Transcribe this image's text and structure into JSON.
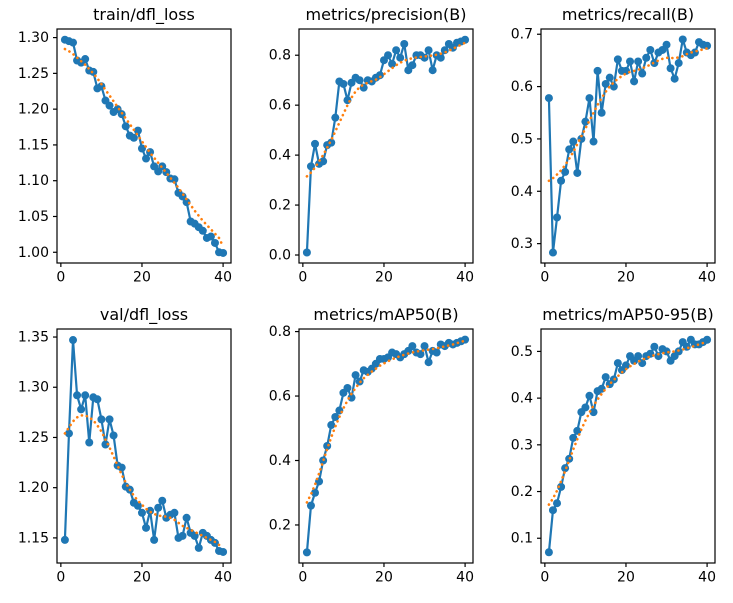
{
  "figure": {
    "background": "#ffffff",
    "rows": 2,
    "cols": 3,
    "colors": {
      "line": "#1f77b4",
      "smooth_dotted": "#ff7f0e",
      "axis": "#000000"
    }
  },
  "chart_data": [
    {
      "type": "line",
      "title": "train/dfl_loss",
      "xlabel": "",
      "ylabel": "",
      "grid": false,
      "legend": "none",
      "x": [
        1,
        2,
        3,
        4,
        5,
        6,
        7,
        8,
        9,
        10,
        11,
        12,
        13,
        14,
        15,
        16,
        17,
        18,
        19,
        20,
        21,
        22,
        23,
        24,
        25,
        26,
        27,
        28,
        29,
        30,
        31,
        32,
        33,
        34,
        35,
        36,
        37,
        38,
        39,
        40
      ],
      "xlim": [
        -0.95,
        41.95
      ],
      "xticks": [
        0,
        20,
        40
      ],
      "xtick_labels": [
        "0",
        "20",
        "40"
      ],
      "ylim": [
        0.985,
        1.312
      ],
      "yticks": [
        1.0,
        1.05,
        1.1,
        1.15,
        1.2,
        1.25,
        1.3
      ],
      "ytick_labels": [
        "1.00",
        "1.05",
        "1.10",
        "1.15",
        "1.20",
        "1.25",
        "1.30"
      ],
      "series": [
        {
          "name": "solid",
          "color": "#1f77b4",
          "style": "solid-markers",
          "values": [
            1.297,
            1.295,
            1.293,
            1.268,
            1.265,
            1.27,
            1.254,
            1.252,
            1.229,
            1.232,
            1.212,
            1.205,
            1.196,
            1.2,
            1.193,
            1.176,
            1.163,
            1.16,
            1.17,
            1.145,
            1.131,
            1.14,
            1.12,
            1.113,
            1.12,
            1.112,
            1.103,
            1.102,
            1.083,
            1.078,
            1.07,
            1.043,
            1.04,
            1.035,
            1.03,
            1.02,
            1.022,
            1.013,
            1.0,
            0.999
          ]
        },
        {
          "name": "dotted",
          "color": "#ff7f0e",
          "style": "dotted",
          "values": [
            1.284,
            1.281,
            1.277,
            1.272,
            1.267,
            1.262,
            1.256,
            1.25,
            1.243,
            1.235,
            1.227,
            1.219,
            1.211,
            1.203,
            1.195,
            1.187,
            1.179,
            1.171,
            1.163,
            1.155,
            1.147,
            1.139,
            1.132,
            1.125,
            1.118,
            1.111,
            1.104,
            1.097,
            1.09,
            1.082,
            1.074,
            1.066,
            1.058,
            1.051,
            1.044,
            1.038,
            1.032,
            1.026,
            1.02,
            1.008
          ]
        }
      ]
    },
    {
      "type": "line",
      "title": "metrics/precision(B)",
      "xlabel": "",
      "ylabel": "",
      "grid": false,
      "legend": "none",
      "x": [
        1,
        2,
        3,
        4,
        5,
        6,
        7,
        8,
        9,
        10,
        11,
        12,
        13,
        14,
        15,
        16,
        17,
        18,
        19,
        20,
        21,
        22,
        23,
        24,
        25,
        26,
        27,
        28,
        29,
        30,
        31,
        32,
        33,
        34,
        35,
        36,
        37,
        38,
        39,
        40
      ],
      "xlim": [
        -0.95,
        41.95
      ],
      "xticks": [
        0,
        20,
        40
      ],
      "xtick_labels": [
        "0",
        "20",
        "40"
      ],
      "ylim": [
        -0.032,
        0.905
      ],
      "yticks": [
        0.0,
        0.2,
        0.4,
        0.6,
        0.8
      ],
      "ytick_labels": [
        "0.0",
        "0.2",
        "0.4",
        "0.6",
        "0.8"
      ],
      "series": [
        {
          "name": "solid",
          "color": "#1f77b4",
          "style": "solid-markers",
          "values": [
            0.01,
            0.355,
            0.445,
            0.365,
            0.375,
            0.44,
            0.45,
            0.55,
            0.695,
            0.685,
            0.62,
            0.69,
            0.71,
            0.7,
            0.67,
            0.7,
            0.695,
            0.71,
            0.72,
            0.78,
            0.8,
            0.765,
            0.82,
            0.79,
            0.845,
            0.74,
            0.76,
            0.8,
            0.8,
            0.79,
            0.82,
            0.74,
            0.8,
            0.79,
            0.82,
            0.845,
            0.83,
            0.85,
            0.855,
            0.862
          ]
        },
        {
          "name": "dotted",
          "color": "#ff7f0e",
          "style": "dotted",
          "values": [
            0.315,
            0.33,
            0.35,
            0.375,
            0.4,
            0.43,
            0.46,
            0.495,
            0.53,
            0.565,
            0.6,
            0.63,
            0.655,
            0.672,
            0.683,
            0.69,
            0.696,
            0.702,
            0.712,
            0.724,
            0.736,
            0.748,
            0.76,
            0.77,
            0.778,
            0.784,
            0.788,
            0.791,
            0.793,
            0.795,
            0.797,
            0.799,
            0.802,
            0.806,
            0.811,
            0.818,
            0.826,
            0.834,
            0.842,
            0.85
          ]
        }
      ]
    },
    {
      "type": "line",
      "title": "metrics/recall(B)",
      "xlabel": "",
      "ylabel": "",
      "grid": false,
      "legend": "none",
      "x": [
        1,
        2,
        3,
        4,
        5,
        6,
        7,
        8,
        9,
        10,
        11,
        12,
        13,
        14,
        15,
        16,
        17,
        18,
        19,
        20,
        21,
        22,
        23,
        24,
        25,
        26,
        27,
        28,
        29,
        30,
        31,
        32,
        33,
        34,
        35,
        36,
        37,
        38,
        39,
        40
      ],
      "xlim": [
        -0.95,
        41.95
      ],
      "xticks": [
        0,
        20,
        40
      ],
      "xtick_labels": [
        "0",
        "20",
        "40"
      ],
      "ylim": [
        0.263,
        0.71
      ],
      "yticks": [
        0.3,
        0.4,
        0.5,
        0.6,
        0.7
      ],
      "ytick_labels": [
        "0.3",
        "0.4",
        "0.5",
        "0.6",
        "0.7"
      ],
      "series": [
        {
          "name": "solid",
          "color": "#1f77b4",
          "style": "solid-markers",
          "values": [
            0.578,
            0.283,
            0.35,
            0.42,
            0.437,
            0.48,
            0.495,
            0.435,
            0.5,
            0.533,
            0.578,
            0.495,
            0.63,
            0.55,
            0.605,
            0.617,
            0.6,
            0.652,
            0.63,
            0.63,
            0.648,
            0.61,
            0.648,
            0.625,
            0.655,
            0.67,
            0.645,
            0.665,
            0.67,
            0.68,
            0.635,
            0.615,
            0.645,
            0.69,
            0.665,
            0.66,
            0.665,
            0.685,
            0.68,
            0.678
          ]
        },
        {
          "name": "dotted",
          "color": "#ff7f0e",
          "style": "dotted",
          "values": [
            0.42,
            0.425,
            0.432,
            0.44,
            0.45,
            0.462,
            0.475,
            0.49,
            0.505,
            0.52,
            0.535,
            0.55,
            0.565,
            0.578,
            0.59,
            0.6,
            0.608,
            0.615,
            0.62,
            0.625,
            0.628,
            0.63,
            0.632,
            0.635,
            0.638,
            0.642,
            0.646,
            0.65,
            0.653,
            0.655,
            0.655,
            0.654,
            0.656,
            0.658,
            0.662,
            0.665,
            0.667,
            0.669,
            0.671,
            0.673
          ]
        }
      ]
    },
    {
      "type": "line",
      "title": "val/dfl_loss",
      "xlabel": "",
      "ylabel": "",
      "grid": false,
      "legend": "none",
      "x": [
        1,
        2,
        3,
        4,
        5,
        6,
        7,
        8,
        9,
        10,
        11,
        12,
        13,
        14,
        15,
        16,
        17,
        18,
        19,
        20,
        21,
        22,
        23,
        24,
        25,
        26,
        27,
        28,
        29,
        30,
        31,
        32,
        33,
        34,
        35,
        36,
        37,
        38,
        39,
        40
      ],
      "xlim": [
        -0.95,
        41.95
      ],
      "xticks": [
        0,
        20,
        40
      ],
      "xtick_labels": [
        "0",
        "20",
        "40"
      ],
      "ylim": [
        1.125,
        1.358
      ],
      "yticks": [
        1.15,
        1.2,
        1.25,
        1.3,
        1.35
      ],
      "ytick_labels": [
        "1.15",
        "1.20",
        "1.25",
        "1.30",
        "1.35"
      ],
      "series": [
        {
          "name": "solid",
          "color": "#1f77b4",
          "style": "solid-markers",
          "values": [
            1.148,
            1.254,
            1.347,
            1.292,
            1.278,
            1.292,
            1.245,
            1.29,
            1.288,
            1.268,
            1.243,
            1.268,
            1.252,
            1.222,
            1.22,
            1.201,
            1.198,
            1.185,
            1.182,
            1.175,
            1.16,
            1.177,
            1.148,
            1.18,
            1.187,
            1.17,
            1.173,
            1.175,
            1.15,
            1.152,
            1.17,
            1.155,
            1.152,
            1.14,
            1.155,
            1.152,
            1.148,
            1.145,
            1.137,
            1.136
          ]
        },
        {
          "name": "dotted",
          "color": "#ff7f0e",
          "style": "dotted",
          "values": [
            1.254,
            1.26,
            1.266,
            1.27,
            1.272,
            1.272,
            1.27,
            1.267,
            1.262,
            1.256,
            1.248,
            1.24,
            1.231,
            1.222,
            1.213,
            1.205,
            1.198,
            1.192,
            1.187,
            1.183,
            1.179,
            1.176,
            1.174,
            1.172,
            1.172,
            1.171,
            1.17,
            1.168,
            1.165,
            1.162,
            1.16,
            1.158,
            1.156,
            1.154,
            1.152,
            1.15,
            1.148,
            1.146,
            1.143,
            1.141
          ]
        }
      ]
    },
    {
      "type": "line",
      "title": "metrics/mAP50(B)",
      "xlabel": "",
      "ylabel": "",
      "grid": false,
      "legend": "none",
      "x": [
        1,
        2,
        3,
        4,
        5,
        6,
        7,
        8,
        9,
        10,
        11,
        12,
        13,
        14,
        15,
        16,
        17,
        18,
        19,
        20,
        21,
        22,
        23,
        24,
        25,
        26,
        27,
        28,
        29,
        30,
        31,
        32,
        33,
        34,
        35,
        36,
        37,
        38,
        39,
        40
      ],
      "xlim": [
        -0.95,
        41.95
      ],
      "xticks": [
        0,
        20,
        40
      ],
      "xtick_labels": [
        "0",
        "20",
        "40"
      ],
      "ylim": [
        0.082,
        0.808
      ],
      "yticks": [
        0.2,
        0.4,
        0.6,
        0.8
      ],
      "ytick_labels": [
        "0.2",
        "0.4",
        "0.6",
        "0.8"
      ],
      "series": [
        {
          "name": "solid",
          "color": "#1f77b4",
          "style": "solid-markers",
          "values": [
            0.115,
            0.26,
            0.3,
            0.335,
            0.4,
            0.445,
            0.51,
            0.535,
            0.555,
            0.61,
            0.625,
            0.595,
            0.665,
            0.645,
            0.68,
            0.675,
            0.685,
            0.7,
            0.715,
            0.715,
            0.72,
            0.735,
            0.73,
            0.72,
            0.73,
            0.74,
            0.755,
            0.735,
            0.73,
            0.755,
            0.705,
            0.74,
            0.735,
            0.76,
            0.755,
            0.765,
            0.76,
            0.765,
            0.77,
            0.775
          ]
        },
        {
          "name": "dotted",
          "color": "#ff7f0e",
          "style": "dotted",
          "values": [
            0.27,
            0.295,
            0.325,
            0.36,
            0.398,
            0.436,
            0.472,
            0.505,
            0.535,
            0.562,
            0.586,
            0.607,
            0.625,
            0.641,
            0.655,
            0.666,
            0.676,
            0.685,
            0.694,
            0.701,
            0.708,
            0.714,
            0.719,
            0.724,
            0.728,
            0.732,
            0.735,
            0.738,
            0.74,
            0.742,
            0.744,
            0.746,
            0.748,
            0.751,
            0.754,
            0.757,
            0.76,
            0.764,
            0.768,
            0.772
          ]
        }
      ]
    },
    {
      "type": "line",
      "title": "metrics/mAP50-95(B)",
      "xlabel": "",
      "ylabel": "",
      "grid": false,
      "legend": "none",
      "x": [
        1,
        2,
        3,
        4,
        5,
        6,
        7,
        8,
        9,
        10,
        11,
        12,
        13,
        14,
        15,
        16,
        17,
        18,
        19,
        20,
        21,
        22,
        23,
        24,
        25,
        26,
        27,
        28,
        29,
        30,
        31,
        32,
        33,
        34,
        35,
        36,
        37,
        38,
        39,
        40
      ],
      "xlim": [
        -0.95,
        41.95
      ],
      "xticks": [
        0,
        20,
        40
      ],
      "xtick_labels": [
        "0",
        "20",
        "40"
      ],
      "ylim": [
        0.047,
        0.548
      ],
      "yticks": [
        0.1,
        0.2,
        0.3,
        0.4,
        0.5
      ],
      "ytick_labels": [
        "0.1",
        "0.2",
        "0.3",
        "0.4",
        "0.5"
      ],
      "series": [
        {
          "name": "solid",
          "color": "#1f77b4",
          "style": "solid-markers",
          "values": [
            0.07,
            0.16,
            0.175,
            0.21,
            0.25,
            0.27,
            0.315,
            0.33,
            0.37,
            0.38,
            0.405,
            0.37,
            0.415,
            0.42,
            0.445,
            0.43,
            0.44,
            0.475,
            0.46,
            0.47,
            0.49,
            0.48,
            0.49,
            0.475,
            0.49,
            0.495,
            0.51,
            0.49,
            0.505,
            0.5,
            0.48,
            0.49,
            0.5,
            0.52,
            0.51,
            0.525,
            0.515,
            0.515,
            0.52,
            0.525
          ]
        },
        {
          "name": "dotted",
          "color": "#ff7f0e",
          "style": "dotted",
          "values": [
            0.172,
            0.185,
            0.202,
            0.222,
            0.244,
            0.267,
            0.29,
            0.312,
            0.333,
            0.352,
            0.369,
            0.384,
            0.397,
            0.409,
            0.42,
            0.43,
            0.439,
            0.447,
            0.455,
            0.462,
            0.468,
            0.473,
            0.478,
            0.482,
            0.486,
            0.489,
            0.492,
            0.494,
            0.496,
            0.498,
            0.499,
            0.5,
            0.502,
            0.504,
            0.507,
            0.509,
            0.512,
            0.515,
            0.518,
            0.521
          ]
        }
      ]
    }
  ]
}
